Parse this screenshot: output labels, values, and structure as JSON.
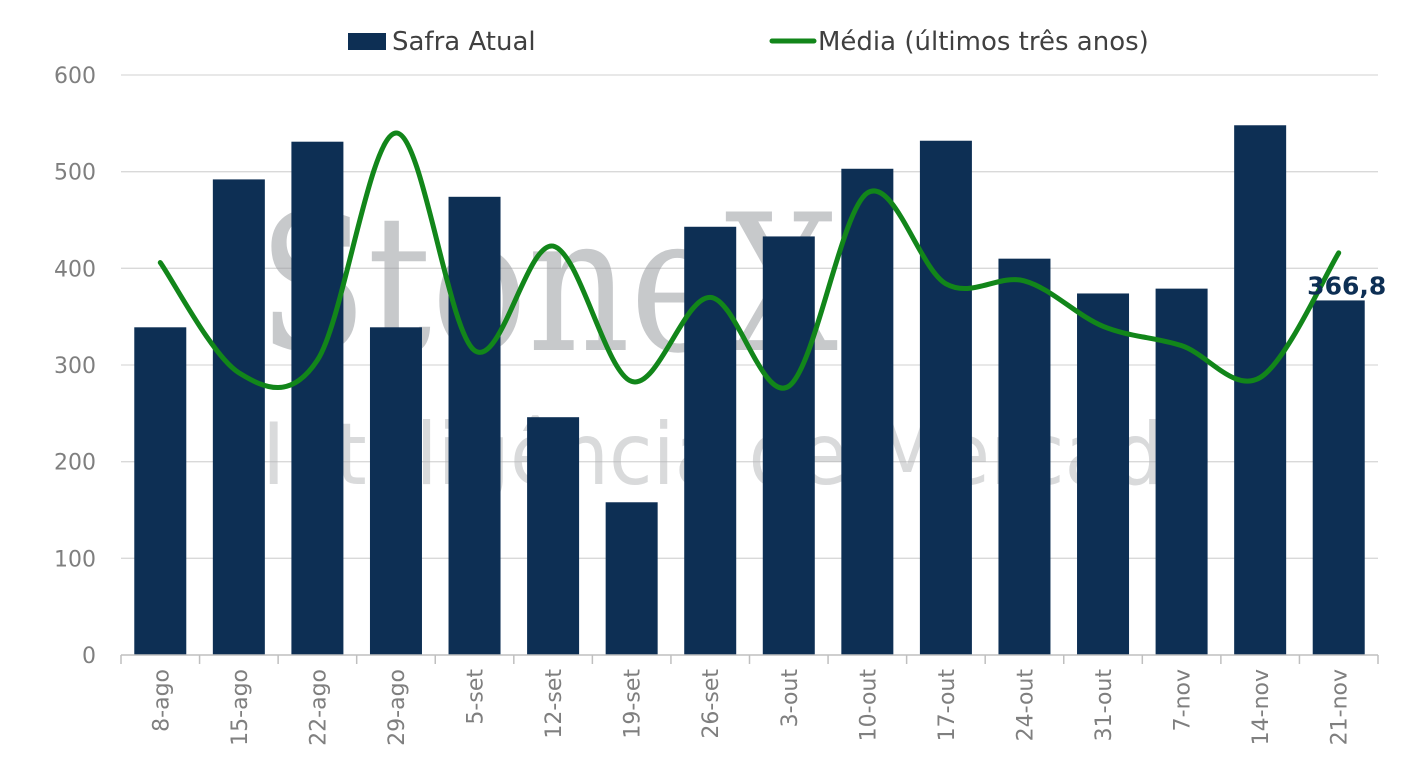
{
  "watermark": {
    "brand": "StoneX",
    "tagline": "Inteligência de Mercado"
  },
  "chart_data": {
    "type": "bar",
    "categories": [
      "8-ago",
      "15-ago",
      "22-ago",
      "29-ago",
      "5-set",
      "12-set",
      "19-set",
      "26-set",
      "3-out",
      "10-out",
      "17-out",
      "24-out",
      "31-out",
      "7-nov",
      "14-nov",
      "21-nov"
    ],
    "series": [
      {
        "name": "Safra Atual",
        "type": "bar",
        "color": "#0d2f54",
        "values": [
          339,
          492,
          531,
          339,
          474,
          246,
          158,
          443,
          433,
          503,
          532,
          410,
          374,
          379,
          548,
          366.8
        ]
      },
      {
        "name": "Média (últimos três anos)",
        "type": "line",
        "smooth": true,
        "color": "#12861a",
        "values": [
          406,
          292,
          305,
          540,
          315,
          423,
          283,
          370,
          278,
          478,
          384,
          387,
          340,
          320,
          287,
          416
        ]
      }
    ],
    "data_labels": [
      {
        "series": "Safra Atual",
        "index": 15,
        "text": "366,8"
      }
    ],
    "ylim": [
      0,
      600
    ],
    "yticks": [
      0,
      100,
      200,
      300,
      400,
      500,
      600
    ],
    "grid": true,
    "legend_position": "top"
  }
}
